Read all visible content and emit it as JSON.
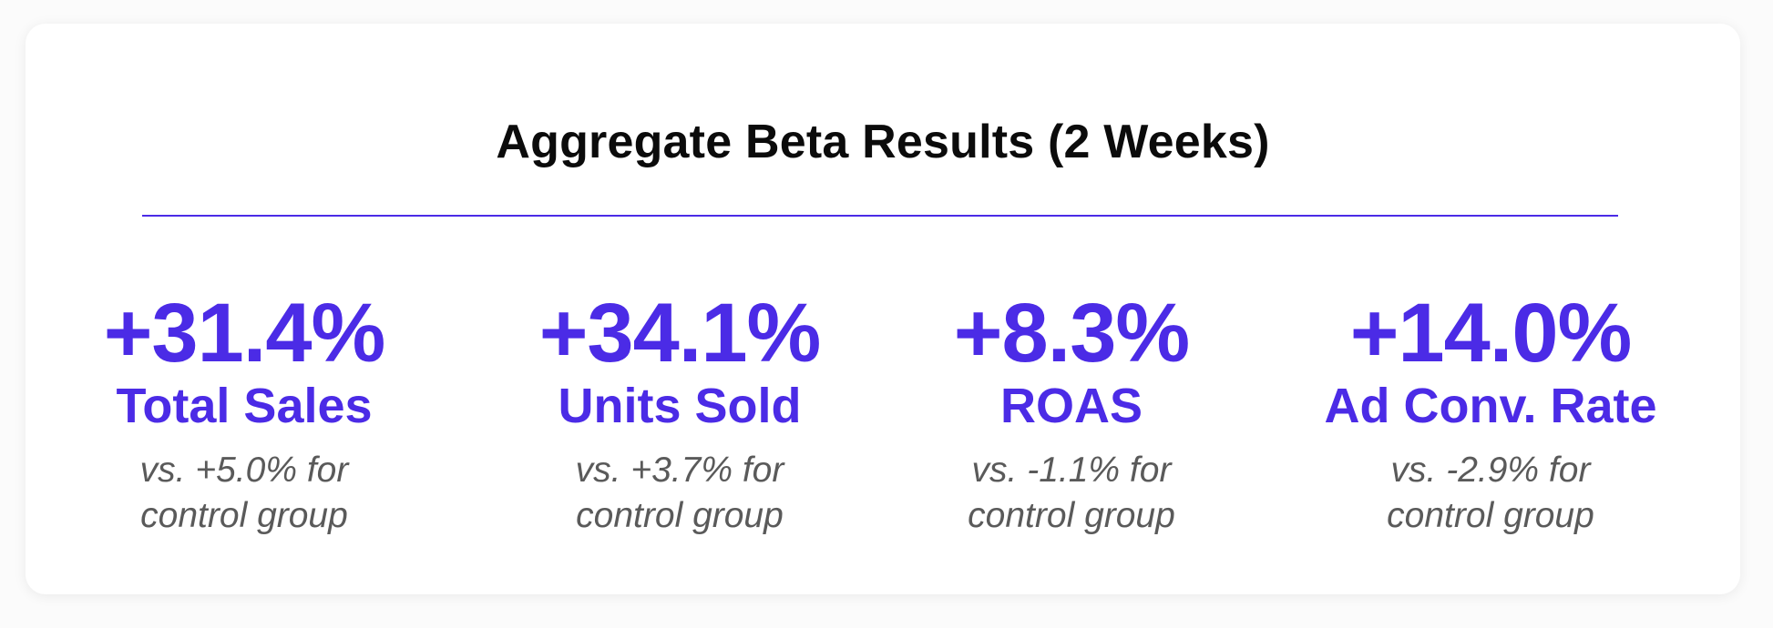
{
  "title": "Aggregate Beta Results (2 Weeks)",
  "metrics": [
    {
      "value": "+31.4%",
      "label": "Total Sales",
      "note_line1": "vs. +5.0% for",
      "note_line2": "control group"
    },
    {
      "value": "+34.1%",
      "label": "Units Sold",
      "note_line1": "vs. +3.7% for",
      "note_line2": "control group"
    },
    {
      "value": "+8.3%",
      "label": "ROAS",
      "note_line1": "vs. -1.1% for",
      "note_line2": "control group"
    },
    {
      "value": "+14.0%",
      "label": "Ad Conv. Rate",
      "note_line1": "vs. -2.9% for",
      "note_line2": "control group"
    }
  ],
  "colors": {
    "accent": "#4b2be6",
    "title": "#0b0b0b",
    "note": "#5a5a5a",
    "card": "#ffffff"
  }
}
